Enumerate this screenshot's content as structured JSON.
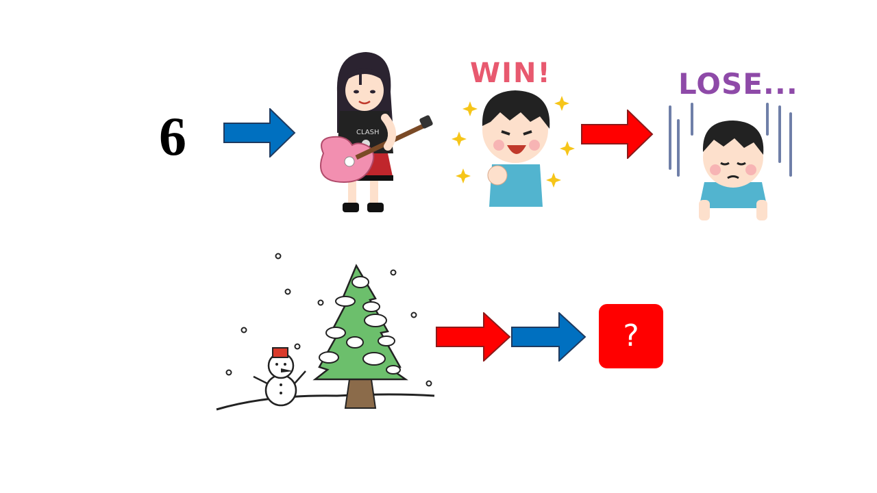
{
  "puzzle": {
    "number": "6",
    "win_text": "WIN!",
    "lose_text": "LOSE...",
    "answer_placeholder": "?"
  },
  "colors": {
    "blue_arrow": "#0070c0",
    "red_arrow": "#ff0000",
    "answer_box": "#ff0000",
    "win_text": "#e8596f",
    "lose_text": "#8e4aa8",
    "tree": "#6cbf6c",
    "guitar": "#f28fb0"
  },
  "icons": {
    "guitarist": "guitarist-girl-icon",
    "winner": "winner-boy-icon",
    "loser": "loser-boy-icon",
    "snow_scene": "snowman-tree-icon"
  }
}
